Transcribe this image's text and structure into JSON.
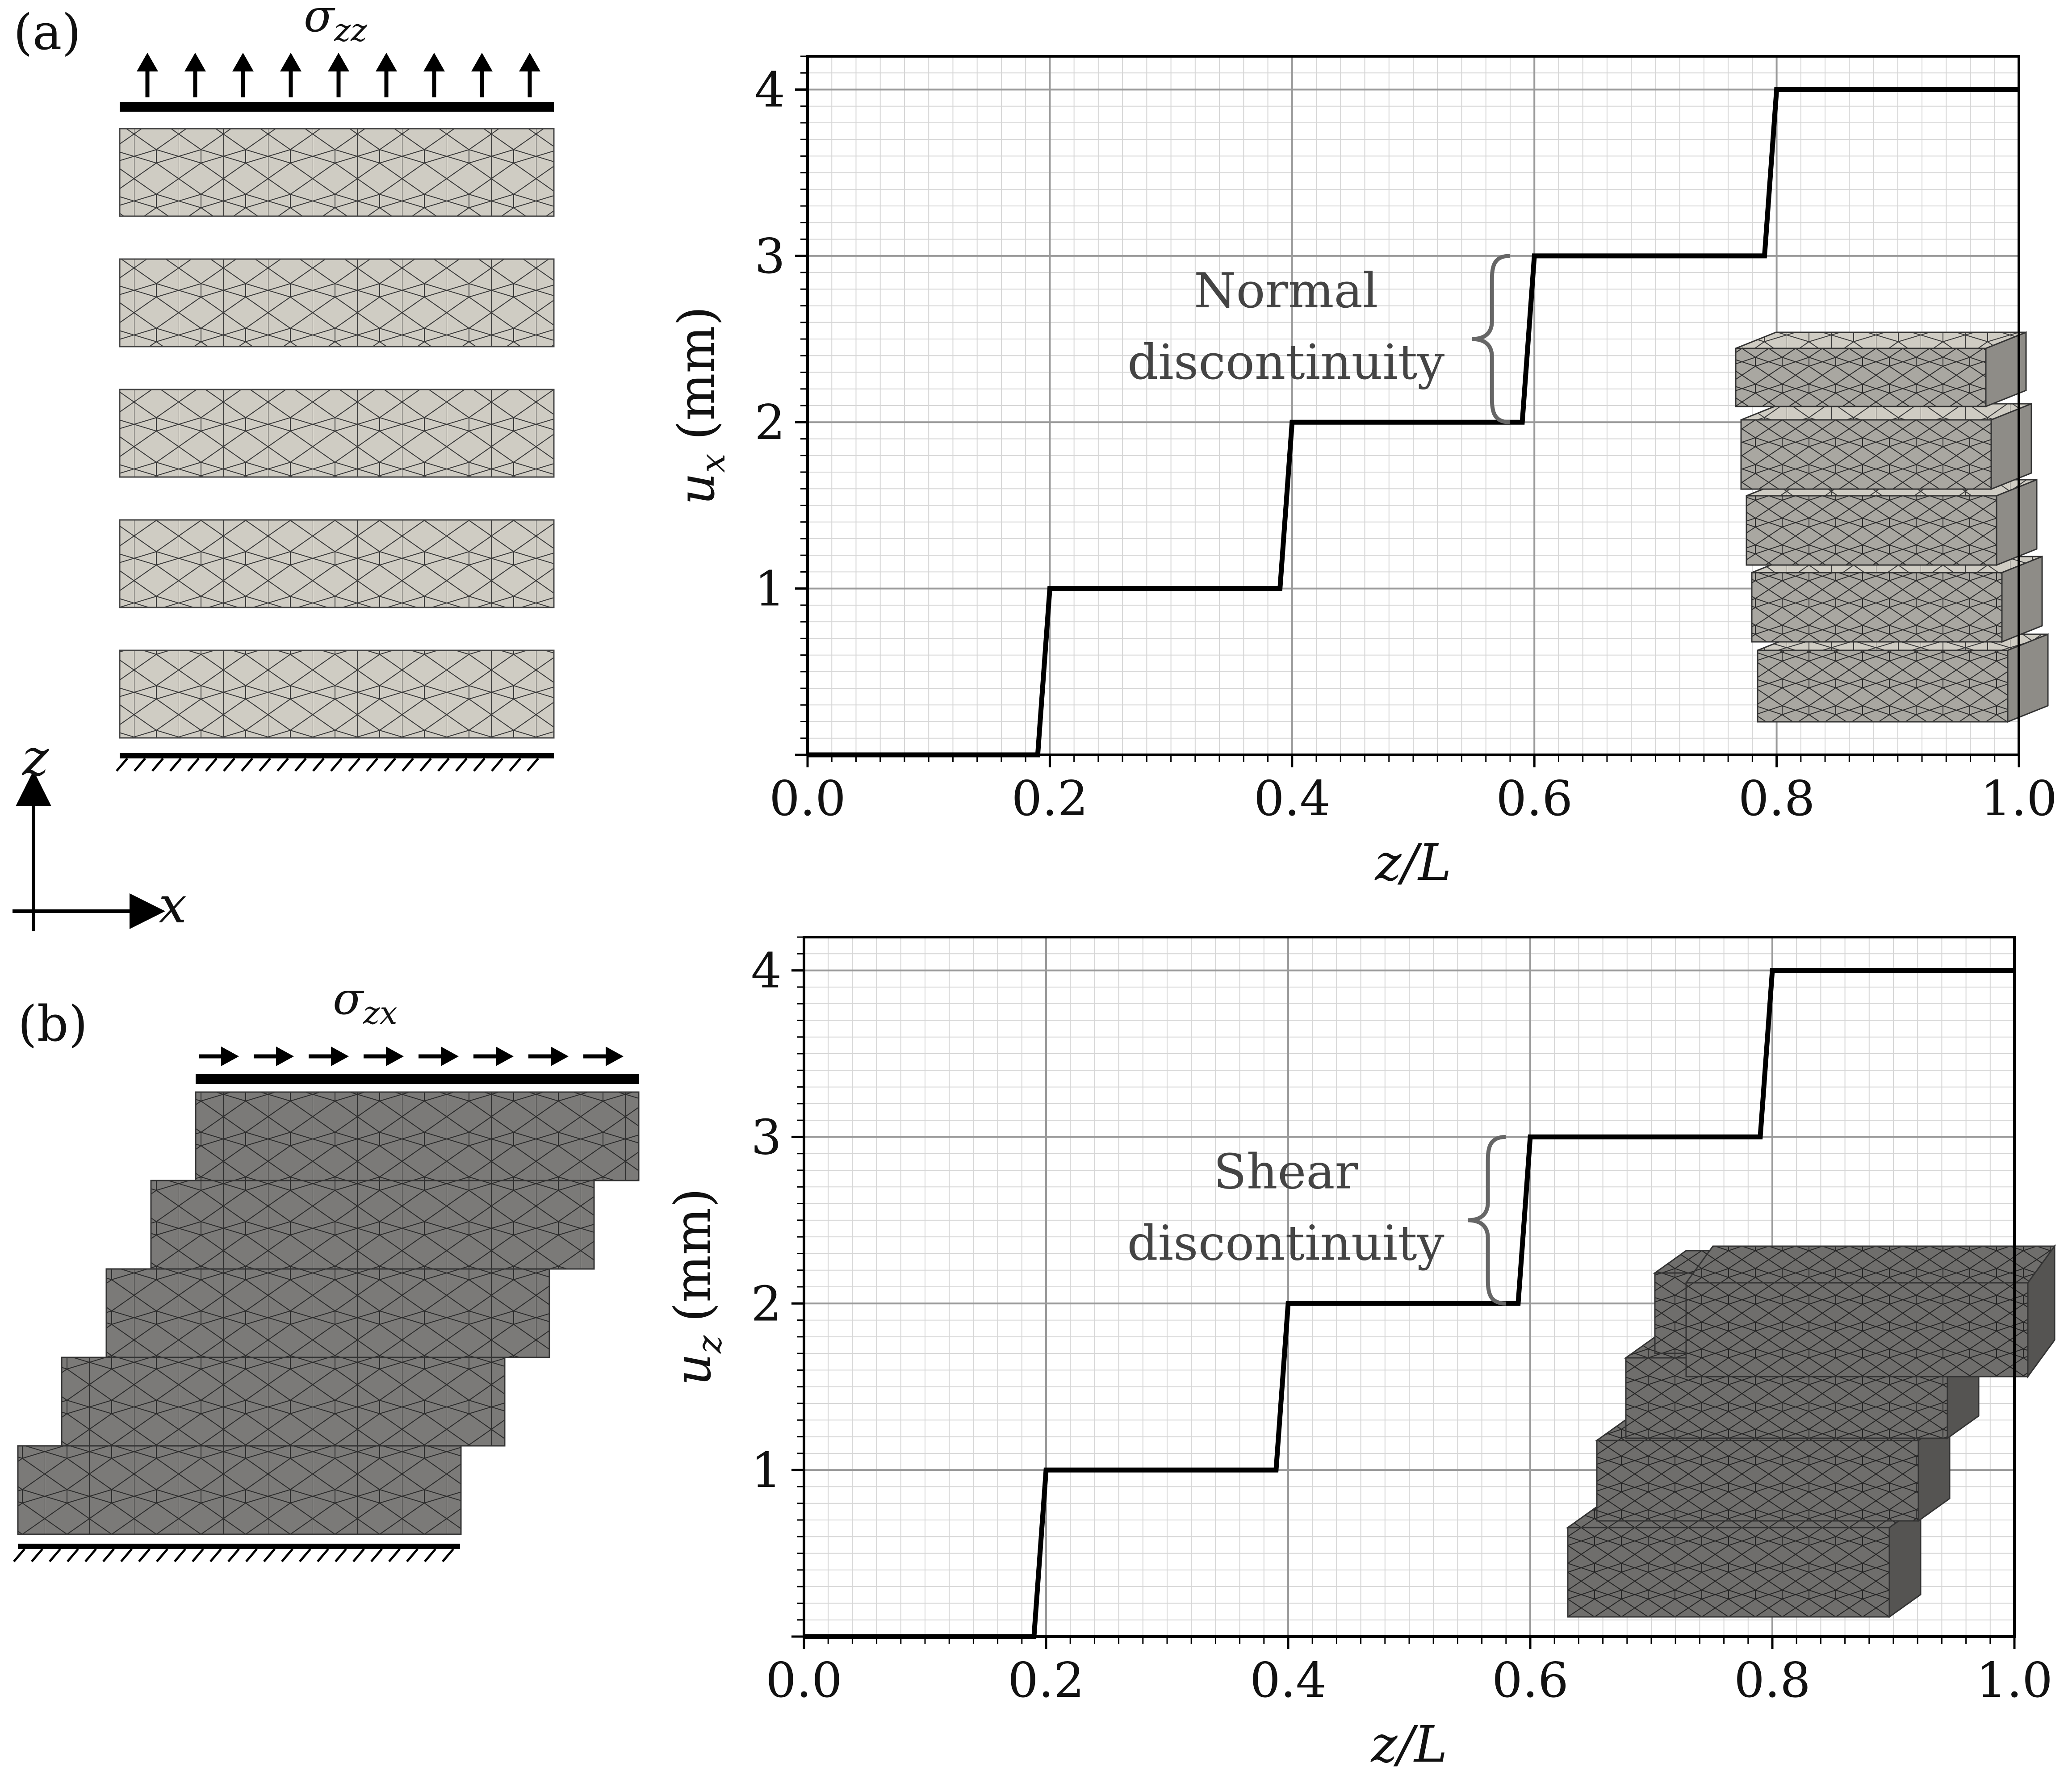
{
  "panels": [
    {
      "label": "(a)",
      "load_label": "σ",
      "load_sub": "zz",
      "annotation": [
        "Normal",
        "discontinuity"
      ]
    },
    {
      "label": "(b)",
      "load_label": "σ",
      "load_sub": "zx",
      "annotation": [
        "Shear",
        "discontinuity"
      ]
    }
  ],
  "axes_triad": {
    "vertical": "z",
    "horizontal": "x"
  },
  "colors": {
    "block_light": "#cfccc3",
    "block_dark": "#7b7a78",
    "line": "#000000",
    "grid_major": "#9a9a9a",
    "grid_minor": "#d6d6d6",
    "bracket": "#666666"
  },
  "chart_data": [
    {
      "type": "line",
      "xlabel": "z/L",
      "ylabel_var": "u",
      "ylabel_sub": "x",
      "ylabel_unit": "(mm)",
      "xlim": [
        0,
        1.0
      ],
      "ylim": [
        0,
        4.2
      ],
      "xticks": [
        "0.0",
        "0.2",
        "0.4",
        "0.6",
        "0.8",
        "1.0"
      ],
      "yticks": [
        "1",
        "2",
        "3",
        "4"
      ],
      "grid": true,
      "series": [
        {
          "x": [
            0,
            0.19,
            0.2,
            0.39,
            0.4,
            0.59,
            0.6,
            0.79,
            0.8,
            1.0
          ],
          "y": [
            0,
            0,
            1,
            1,
            2,
            2,
            3,
            3,
            4,
            4
          ]
        }
      ]
    },
    {
      "type": "line",
      "xlabel": "z/L",
      "ylabel_var": "u",
      "ylabel_sub": "z",
      "ylabel_unit": "(mm)",
      "xlim": [
        0,
        1.0
      ],
      "ylim": [
        0,
        4.2
      ],
      "xticks": [
        "0.0",
        "0.2",
        "0.4",
        "0.6",
        "0.8",
        "1.0"
      ],
      "yticks": [
        "1",
        "2",
        "3",
        "4"
      ],
      "grid": true,
      "series": [
        {
          "x": [
            0,
            0.19,
            0.2,
            0.39,
            0.4,
            0.59,
            0.6,
            0.79,
            0.8,
            1.0
          ],
          "y": [
            0,
            0,
            1,
            1,
            2,
            2,
            3,
            3,
            4,
            4
          ]
        }
      ]
    }
  ]
}
